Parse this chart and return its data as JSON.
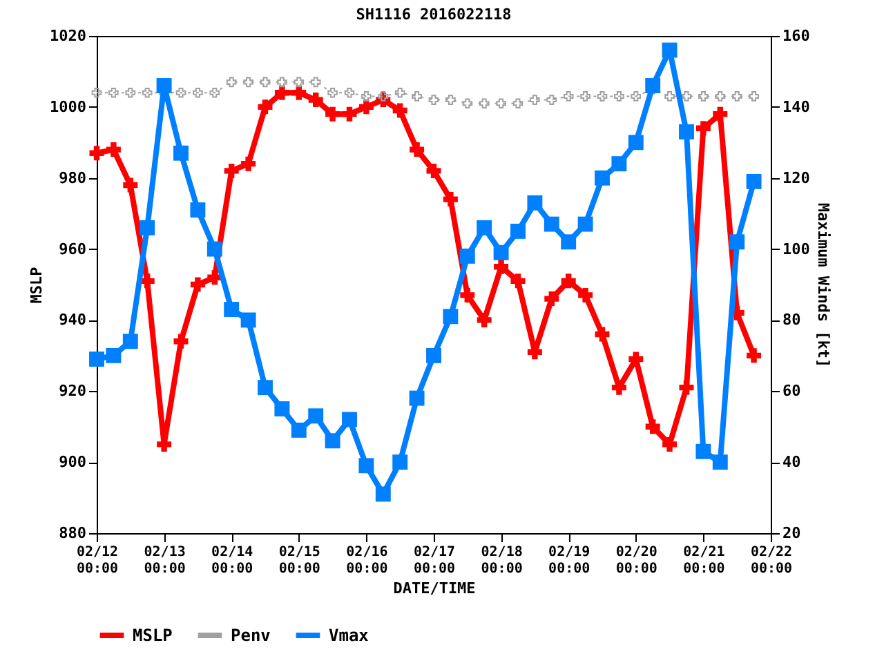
{
  "chart_data": {
    "type": "line",
    "title": "SH1116 2016022118",
    "xlabel": "DATE/TIME",
    "ylabel": "MSLP",
    "y2label": "Maximum Winds [kt]",
    "x": [
      "2016-02-12T00:00",
      "2016-02-12T06:00",
      "2016-02-12T12:00",
      "2016-02-12T18:00",
      "2016-02-13T00:00",
      "2016-02-13T06:00",
      "2016-02-13T12:00",
      "2016-02-13T18:00",
      "2016-02-14T00:00",
      "2016-02-14T06:00",
      "2016-02-14T12:00",
      "2016-02-14T18:00",
      "2016-02-15T00:00",
      "2016-02-15T06:00",
      "2016-02-15T12:00",
      "2016-02-15T18:00",
      "2016-02-16T00:00",
      "2016-02-16T06:00",
      "2016-02-16T12:00",
      "2016-02-16T18:00",
      "2016-02-17T00:00",
      "2016-02-17T06:00",
      "2016-02-17T12:00",
      "2016-02-17T18:00",
      "2016-02-18T00:00",
      "2016-02-18T06:00",
      "2016-02-18T12:00",
      "2016-02-18T18:00",
      "2016-02-19T00:00",
      "2016-02-19T06:00",
      "2016-02-19T12:00",
      "2016-02-19T18:00",
      "2016-02-20T00:00",
      "2016-02-20T06:00",
      "2016-02-20T12:00",
      "2016-02-20T18:00",
      "2016-02-21T00:00",
      "2016-02-21T06:00",
      "2016-02-21T12:00",
      "2016-02-21T18:00"
    ],
    "series": [
      {
        "name": "MSLP",
        "color": "#ff0000",
        "marker": "cross",
        "line_style": "solid",
        "values": [
          987,
          988,
          978,
          951,
          905,
          934,
          950,
          952,
          982,
          984,
          1000,
          1004,
          1004,
          1002,
          998,
          998,
          1000,
          1002,
          999,
          988,
          982,
          974,
          947,
          940,
          955,
          951,
          931,
          946,
          951,
          947,
          936,
          921,
          929,
          910,
          905,
          921,
          994,
          998,
          942,
          930
        ]
      },
      {
        "name": "Penv",
        "color": "#a0a0a0",
        "marker": "cross",
        "line_style": "dotted",
        "values": [
          1004,
          1004,
          1004,
          1004,
          1004,
          1004,
          1004,
          1004,
          1007,
          1007,
          1007,
          1007,
          1007,
          1007,
          1004,
          1004,
          1003,
          1003,
          1004,
          1003,
          1002,
          1002,
          1001,
          1001,
          1001,
          1001,
          1002,
          1002,
          1003,
          1003,
          1003,
          1003,
          1003,
          1005,
          1003,
          1003,
          1003,
          1003,
          1003,
          1003
        ]
      },
      {
        "name": "Vmax",
        "color": "#0080ff",
        "marker": "square",
        "line_style": "solid",
        "axis": "y2",
        "values": [
          69,
          70,
          74,
          106,
          146,
          127,
          111,
          100,
          83,
          80,
          61,
          55,
          49,
          53,
          46,
          52,
          39,
          31,
          40,
          58,
          70,
          81,
          98,
          106,
          99,
          105,
          113,
          107,
          102,
          107,
          120,
          124,
          130,
          146,
          156,
          133,
          43,
          40,
          102,
          119
        ]
      }
    ],
    "xlim": [
      "2016-02-12T00:00",
      "2016-02-22T00:00"
    ],
    "xticks": [
      {
        "value": "2016-02-12T00:00",
        "label": "02/12\n00:00"
      },
      {
        "value": "2016-02-13T00:00",
        "label": "02/13\n00:00"
      },
      {
        "value": "2016-02-14T00:00",
        "label": "02/14\n00:00"
      },
      {
        "value": "2016-02-15T00:00",
        "label": "02/15\n00:00"
      },
      {
        "value": "2016-02-16T00:00",
        "label": "02/16\n00:00"
      },
      {
        "value": "2016-02-17T00:00",
        "label": "02/17\n00:00"
      },
      {
        "value": "2016-02-18T00:00",
        "label": "02/18\n00:00"
      },
      {
        "value": "2016-02-19T00:00",
        "label": "02/19\n00:00"
      },
      {
        "value": "2016-02-20T00:00",
        "label": "02/20\n00:00"
      },
      {
        "value": "2016-02-21T00:00",
        "label": "02/21\n00:00"
      },
      {
        "value": "2016-02-22T00:00",
        "label": "02/22\n00:00"
      }
    ],
    "ylim": [
      880,
      1020
    ],
    "yticks": [
      880,
      900,
      920,
      940,
      960,
      980,
      1000,
      1020
    ],
    "y2lim": [
      20,
      160
    ],
    "y2ticks": [
      20,
      40,
      60,
      80,
      100,
      120,
      140,
      160
    ],
    "grid": false,
    "legend": "bottom"
  }
}
